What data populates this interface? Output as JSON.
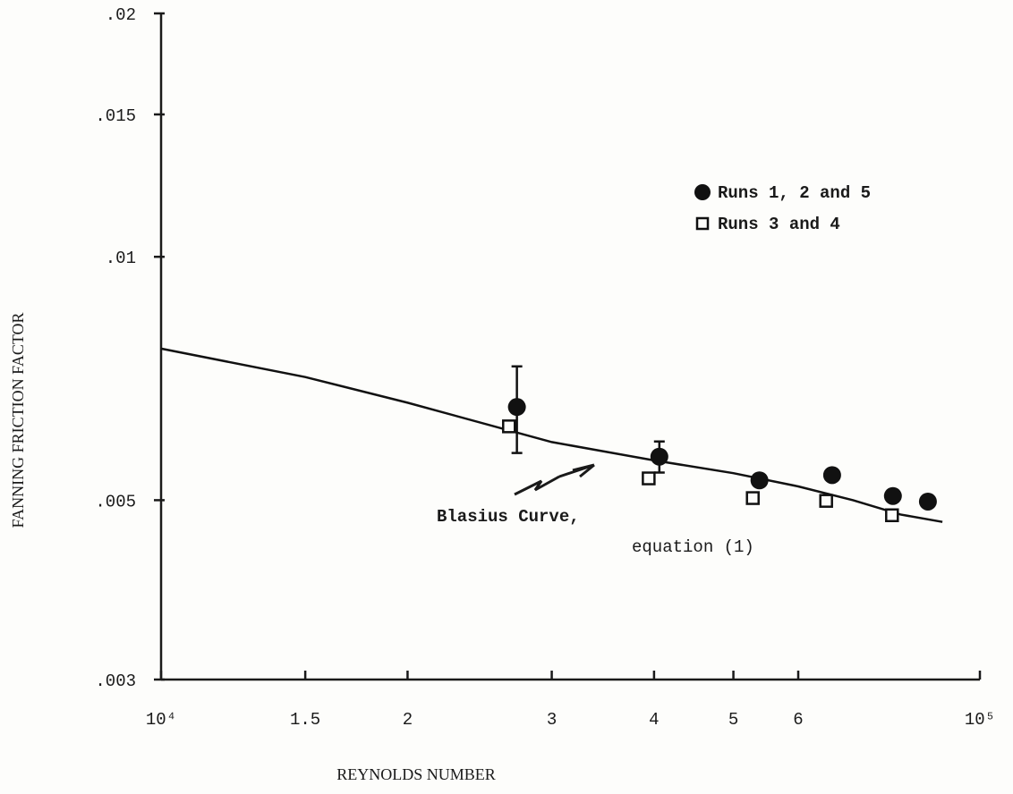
{
  "chart_data": {
    "type": "scatter",
    "x_label": "REYNOLDS NUMBER",
    "y_label": "FANNING FRICTION FACTOR",
    "xscale": "log",
    "yscale": "log",
    "xlim": [
      10000,
      100000
    ],
    "ylim": [
      0.003,
      0.02
    ],
    "xticks": [
      {
        "value": 10000,
        "label": "10⁴"
      },
      {
        "value": 15000,
        "label": "1.5"
      },
      {
        "value": 20000,
        "label": "2"
      },
      {
        "value": 30000,
        "label": "3"
      },
      {
        "value": 40000,
        "label": "4"
      },
      {
        "value": 50000,
        "label": "5"
      },
      {
        "value": 60000,
        "label": "6"
      },
      {
        "value": 100000,
        "label": "10⁵"
      }
    ],
    "yticks": [
      {
        "value": 0.003,
        "label": ".003"
      },
      {
        "value": 0.005,
        "label": ".005"
      },
      {
        "value": 0.01,
        "label": ".01"
      },
      {
        "value": 0.015,
        "label": ".015"
      },
      {
        "value": 0.02,
        "label": ".02"
      }
    ],
    "series": [
      {
        "name": "Runs 1, 2 and 5",
        "marker": "circle",
        "color": "#111111",
        "x": [
          27200,
          40600,
          53800,
          66000,
          78300,
          86400
        ],
        "values": [
          0.00652,
          0.00566,
          0.00529,
          0.00537,
          0.00506,
          0.00498
        ],
        "errors": [
          0.0008,
          0.00025,
          null,
          null,
          null,
          null
        ]
      },
      {
        "name": "Runs 3 and 4",
        "marker": "square",
        "color": "#111111",
        "x": [
          26600,
          39400,
          52800,
          64900,
          78100
        ],
        "values": [
          0.00617,
          0.00532,
          0.00503,
          0.00499,
          0.00479
        ]
      }
    ],
    "curve": {
      "color": "#111111",
      "x": [
        10000,
        15000,
        20000,
        30000,
        40000,
        50000,
        60000,
        70000,
        80000,
        90000
      ],
      "values": [
        0.0077,
        0.0071,
        0.0066,
        0.0059,
        0.0056,
        0.0054,
        0.0052,
        0.005,
        0.0048,
        0.0047
      ]
    },
    "annotations": [
      "Blasius Curve,",
      "equation (1)"
    ]
  }
}
